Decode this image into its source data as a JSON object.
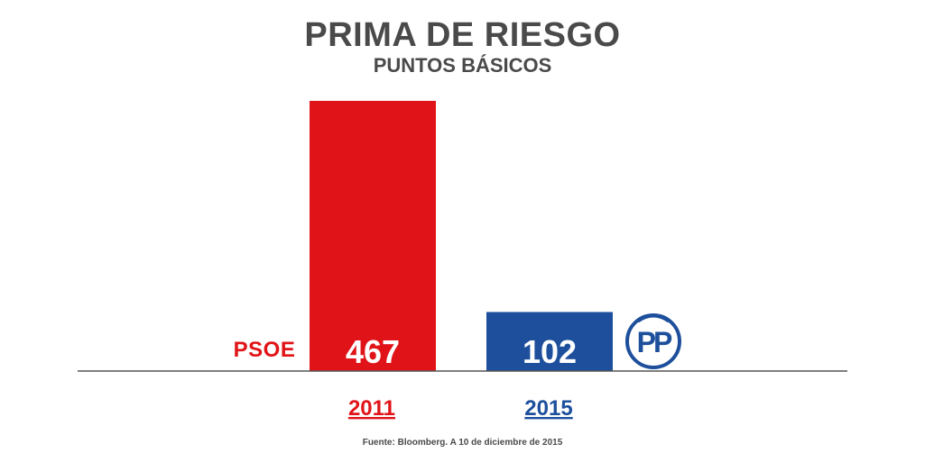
{
  "chart_data": {
    "type": "bar",
    "title": "PRIMA DE RIESGO",
    "subtitle": "PUNTOS BÁSICOS",
    "categories": [
      "2011",
      "2015"
    ],
    "values": [
      467,
      102
    ],
    "bar_labels": [
      "467",
      "102"
    ],
    "ylim": [
      0,
      467
    ],
    "grid": false,
    "colors": {
      "2011": "#e01418",
      "2015": "#1d4f9c"
    },
    "party_labels": {
      "left": "PSOE",
      "right_logo": "PP"
    }
  },
  "footer": {
    "source": "Fuente: Bloomberg. A 10 de diciembre de 2015"
  },
  "colors": {
    "title": "#4a4a4a",
    "psoe_red": "#e01418",
    "pp_blue": "#1d4f9c",
    "axis": "#555555"
  },
  "icons": {
    "pp_logo": "pp-party-logo-icon"
  }
}
